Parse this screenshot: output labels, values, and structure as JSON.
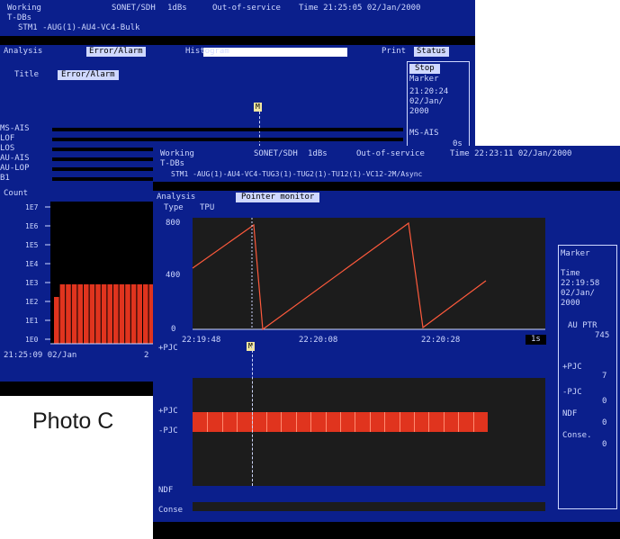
{
  "caption": "Photo C",
  "back": {
    "header": {
      "status": "Working",
      "mode": "SONET/SDH",
      "rate": "1dBs",
      "service": "Out-of-service",
      "time": "Time 21:25:05 02/Jan/2000",
      "sub1": "T-DBs",
      "sub2": "STM1 -AUG(1)-AU4-VC4-Bulk"
    },
    "tabs": [
      "Analysis",
      "Error/Alarm",
      "Histogram",
      "Print",
      "Status"
    ],
    "title_label": "Title",
    "title_value": "Error/Alarm",
    "marker_label": "M",
    "rows": [
      "MS-AIS",
      "LOF",
      "LOS",
      "AU-AIS",
      "AU-LOP",
      "B1"
    ],
    "count_label": "Count",
    "y_ticks": [
      "1E7",
      "1E6",
      "1E5",
      "1E4",
      "1E3",
      "1E2",
      "1E1",
      "1E0"
    ],
    "x_start": "21:25:09 02/Jan",
    "x_end": "2",
    "side": {
      "stop": "Stop",
      "marker": "Marker",
      "time": "21:20:24 02/Jan/ 2000",
      "event": "MS-AIS",
      "value": "0s"
    }
  },
  "front": {
    "header": {
      "status": "Working",
      "mode": "SONET/SDH",
      "rate": "1dBs",
      "service": "Out-of-service",
      "time": "Time 22:23:11 02/Jan/2000",
      "sub1": "T-DBs",
      "sub2": "STM1 -AUG(1)-AU4-VC4-TUG3(1)-TUG2(1)-TU12(1)-VC12-2M/Async"
    },
    "tabs": [
      "Analysis",
      "Pointer monitor"
    ],
    "type_label": "Type",
    "type_value": "TPU",
    "graph": {
      "y_top": "800",
      "y_mid": "400",
      "y_bottom": "0",
      "x_ticks": [
        "22:19:48",
        "22:20:08",
        "22:20:28"
      ],
      "scale": "1s"
    },
    "event_label": "+PJC",
    "marker_label": "M",
    "left_rows": [
      "+PJC",
      "-PJC",
      "NDF",
      "Conse"
    ],
    "side": {
      "marker": "Marker",
      "time_label": "Time",
      "time_value": "22:19:58",
      "date_value": "02/Jan/ 2000",
      "ptr_label": "AU PTR",
      "ptr_value": "745",
      "rows": [
        {
          "label": "+PJC",
          "value": "7"
        },
        {
          "label": "-PJC",
          "value": "0"
        },
        {
          "label": "NDF",
          "value": "0"
        },
        {
          "label": "Conse.",
          "value": "0"
        }
      ]
    }
  },
  "colors": {
    "screen": "#0b1f8c",
    "bar": "#e0341e",
    "plot": "#1c1c1c",
    "trace": "#ff5a3c"
  }
}
